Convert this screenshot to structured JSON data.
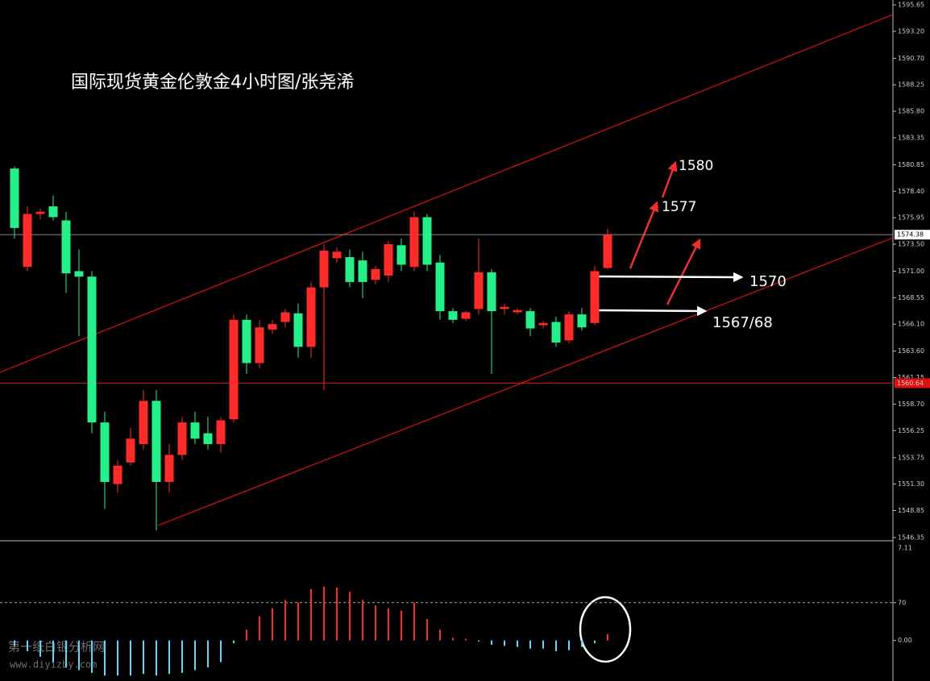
{
  "chart_data": {
    "type": "candlestick",
    "title": "国际现货黄金伦敦金4小时图/张尧浠",
    "up_color": "#ff2a2a",
    "down_color": "#26f08a",
    "ohlc": [
      [
        1580.5,
        1580.7,
        1574,
        1575
      ],
      [
        1571.4,
        1577,
        1571,
        1576.3
      ],
      [
        1576.3,
        1576.8,
        1575.8,
        1576.5
      ],
      [
        1577,
        1578,
        1575.7,
        1576
      ],
      [
        1575.7,
        1576.5,
        1569,
        1570.8
      ],
      [
        1571,
        1573,
        1565,
        1570.5
      ],
      [
        1570.5,
        1571,
        1556,
        1557
      ],
      [
        1557,
        1558,
        1549,
        1551.5
      ],
      [
        1551.3,
        1553.5,
        1550.5,
        1553
      ],
      [
        1553.3,
        1556.5,
        1553,
        1555.5
      ],
      [
        1555,
        1560,
        1554.5,
        1559
      ],
      [
        1559,
        1560,
        1547,
        1551.5
      ],
      [
        1551.5,
        1555,
        1550.5,
        1554
      ],
      [
        1554,
        1557.5,
        1553.5,
        1557
      ],
      [
        1557,
        1558,
        1555,
        1555.5
      ],
      [
        1556,
        1557.5,
        1554.5,
        1555
      ],
      [
        1555,
        1557.5,
        1554.2,
        1557.2
      ],
      [
        1557.3,
        1567,
        1557,
        1566.5
      ],
      [
        1566.5,
        1567,
        1561.5,
        1562.5
      ],
      [
        1562.5,
        1566.5,
        1562,
        1565.8
      ],
      [
        1565.6,
        1566.5,
        1565.2,
        1566.1
      ],
      [
        1566.3,
        1567.5,
        1565.8,
        1567.2
      ],
      [
        1567.1,
        1568,
        1563,
        1564
      ],
      [
        1564,
        1570,
        1563,
        1569.5
      ],
      [
        1569.5,
        1573.5,
        1560,
        1572.9
      ],
      [
        1572.2,
        1573.2,
        1571.8,
        1572.8
      ],
      [
        1572.3,
        1573,
        1569.5,
        1570
      ],
      [
        1572,
        1572.8,
        1568.5,
        1570
      ],
      [
        1570.2,
        1571.5,
        1569.8,
        1571.2
      ],
      [
        1570.6,
        1573.8,
        1570,
        1573.5
      ],
      [
        1573.4,
        1574,
        1571,
        1571.6
      ],
      [
        1571.4,
        1576.5,
        1571,
        1576
      ],
      [
        1576,
        1576.3,
        1571,
        1571.6
      ],
      [
        1571.8,
        1572.5,
        1566.5,
        1567.3
      ],
      [
        1567.3,
        1567.6,
        1566.2,
        1566.5
      ],
      [
        1566.6,
        1567.3,
        1566.4,
        1567.2
      ],
      [
        1567.5,
        1574,
        1567,
        1570.9
      ],
      [
        1570.9,
        1571.2,
        1561.5,
        1567.3
      ],
      [
        1567.5,
        1568,
        1567,
        1567.7
      ],
      [
        1567.2,
        1567.6,
        1567,
        1567.4
      ],
      [
        1567.3,
        1567.6,
        1565,
        1565.7
      ],
      [
        1566,
        1566.4,
        1565.7,
        1566.2
      ],
      [
        1566.3,
        1566.8,
        1564,
        1564.4
      ],
      [
        1564.6,
        1567.3,
        1564.3,
        1567
      ],
      [
        1567,
        1567.6,
        1565.5,
        1565.8
      ],
      [
        1566.2,
        1571.5,
        1566,
        1571
      ],
      [
        1571.3,
        1574.9,
        1571.2,
        1574.38
      ]
    ],
    "ylim": [
      1546.35,
      1595.65
    ],
    "yticks": [
      1595.65,
      {
        "value": 1593.2,
        "label": "1593.20"
      },
      {
        "value": 1590.7,
        "label": "1590.70"
      },
      1588.25,
      {
        "value": 1585.8,
        "label": "1585.80"
      },
      1583.35,
      1580.85,
      {
        "value": 1578.4,
        "label": "1578.40"
      },
      1575.95,
      {
        "value": 1573.5,
        "label": "1573.50"
      },
      {
        "value": 1571,
        "label": "1571.00"
      },
      1568.55,
      {
        "value": 1566.1,
        "label": "1566.10"
      },
      {
        "value": 1563.6,
        "label": "1563.60"
      },
      1561.15,
      {
        "value": 1558.7,
        "label": "1558.70"
      },
      1556.25,
      1553.75,
      {
        "value": 1551.3,
        "label": "1551.30"
      },
      1548.85,
      1546.35
    ],
    "last_price": 1574.38,
    "level": 1560.64,
    "annotations": [
      "1580",
      "1577",
      "1570",
      "1567/68"
    ],
    "indicator": {
      "type": "bar",
      "values": [
        -10,
        -20,
        -30,
        -40,
        -50,
        -55,
        -60,
        -65,
        -65,
        -65,
        -62,
        -65,
        -62,
        -60,
        -55,
        -50,
        -40,
        -5,
        20,
        45,
        60,
        75,
        70,
        95,
        100,
        98,
        90,
        75,
        65,
        60,
        55,
        70,
        40,
        20,
        5,
        3,
        -2,
        -8,
        -10,
        -12,
        -15,
        -15,
        -20,
        -18,
        -12,
        -5,
        12
      ],
      "pos_color": "#ff2a2a",
      "neg_color": "#5fd8f0",
      "ylim": [
        -75,
        183
      ],
      "yticks": [
        70,
        {
          "value": 0,
          "label": "0.00"
        }
      ],
      "top_label": "7.11"
    },
    "watermark": [
      "第一纸白银分析网",
      "www.diyizby.com"
    ]
  }
}
